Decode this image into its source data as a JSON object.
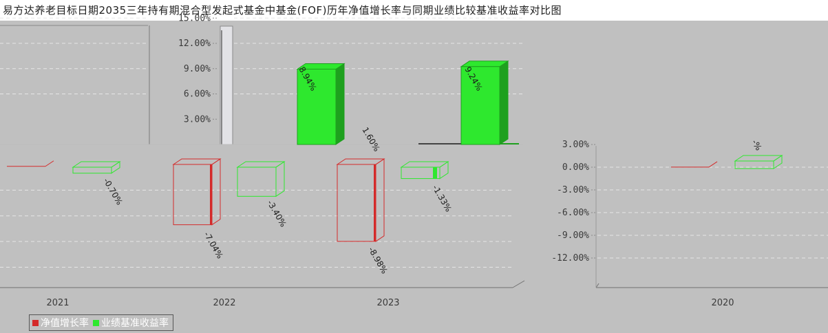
{
  "header": {
    "title": "易方达养老目标日期2035三年持有期混合型发起式基金中基金(FOF)历年净值增长率与同期业绩比较基准收益率对比图"
  },
  "colors": {
    "nav_growth": "#d42a2a",
    "benchmark": "#2ee82e",
    "benchmark_side": "#1ea01e",
    "background": "#c0c0c0"
  },
  "chart_data": {
    "type": "bar",
    "categories": [
      "2021",
      "2022",
      "2023",
      "2020"
    ],
    "series": [
      {
        "name": "净值增长率",
        "values": [
          0.1,
          -7.04,
          -8.98,
          0.1
        ]
      },
      {
        "name": "业绩基准收益率",
        "values": [
          -0.7,
          -3.4,
          -1.33,
          1.0
        ]
      }
    ],
    "secondary_values": [
      8.94,
      1.6,
      9.24
    ],
    "data_labels": {
      "nav_growth": [
        "",
        "-7.04%",
        "-8.98%",
        ""
      ],
      "benchmark": [
        "-0.70%",
        "-3.40%",
        "-1.33%",
        "-%"
      ],
      "secondary": [
        "8.94%",
        "1.60%",
        "9.24%"
      ]
    },
    "yticks_top": [
      "15.00%",
      "12.00%",
      "9.00%",
      "6.00%",
      "3.00%"
    ],
    "yticks_bottom": [
      "3.00%",
      "0.00%",
      "-3.00%",
      "-6.00%",
      "-9.00%",
      "-12.00%"
    ],
    "ylim": [
      -14,
      16
    ],
    "grid": true,
    "legend_position": "bottom-left"
  }
}
